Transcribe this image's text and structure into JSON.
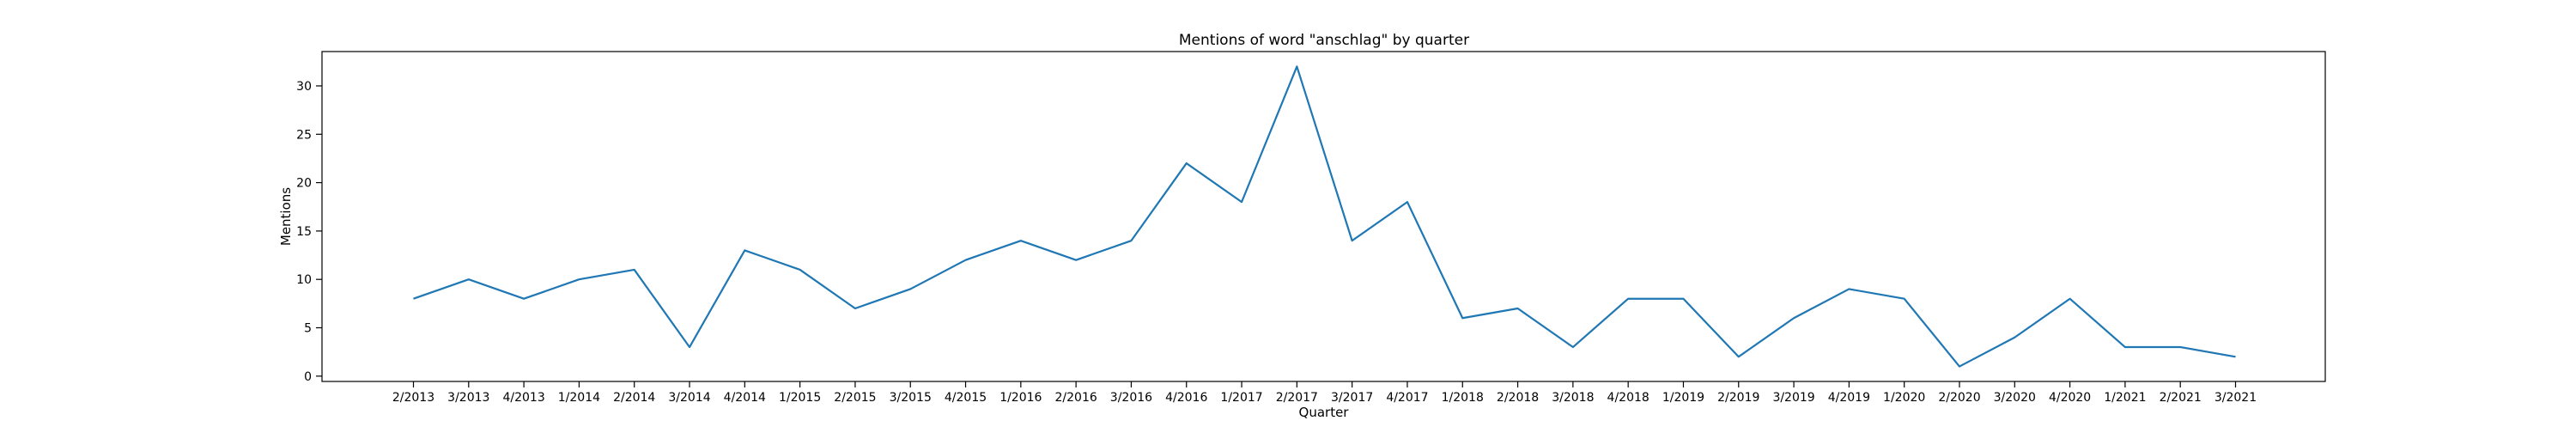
{
  "chart_data": {
    "type": "line",
    "title": "Mentions of word \"anschlag\" by quarter",
    "xlabel": "Quarter",
    "ylabel": "Mentions",
    "categories": [
      "2/2013",
      "3/2013",
      "4/2013",
      "1/2014",
      "2/2014",
      "3/2014",
      "4/2014",
      "1/2015",
      "2/2015",
      "3/2015",
      "4/2015",
      "1/2016",
      "2/2016",
      "3/2016",
      "4/2016",
      "1/2017",
      "2/2017",
      "3/2017",
      "4/2017",
      "1/2018",
      "2/2018",
      "3/2018",
      "4/2018",
      "1/2019",
      "2/2019",
      "3/2019",
      "4/2019",
      "1/2020",
      "2/2020",
      "3/2020",
      "4/2020",
      "1/2021",
      "2/2021",
      "3/2021"
    ],
    "series": [
      {
        "values": [
          8,
          10,
          8,
          10,
          11,
          3,
          13,
          11,
          7,
          9,
          12,
          14,
          12,
          14,
          22,
          18,
          32,
          14,
          18,
          6,
          7,
          3,
          8,
          8,
          2,
          6,
          9,
          8,
          1,
          4,
          8,
          3,
          3,
          2
        ],
        "color": "#1f77b4"
      }
    ],
    "ylim": [
      -0.55,
      33.55
    ],
    "yticks": [
      0,
      5,
      10,
      15,
      20,
      25,
      30
    ],
    "grid": false,
    "legend": "none"
  }
}
